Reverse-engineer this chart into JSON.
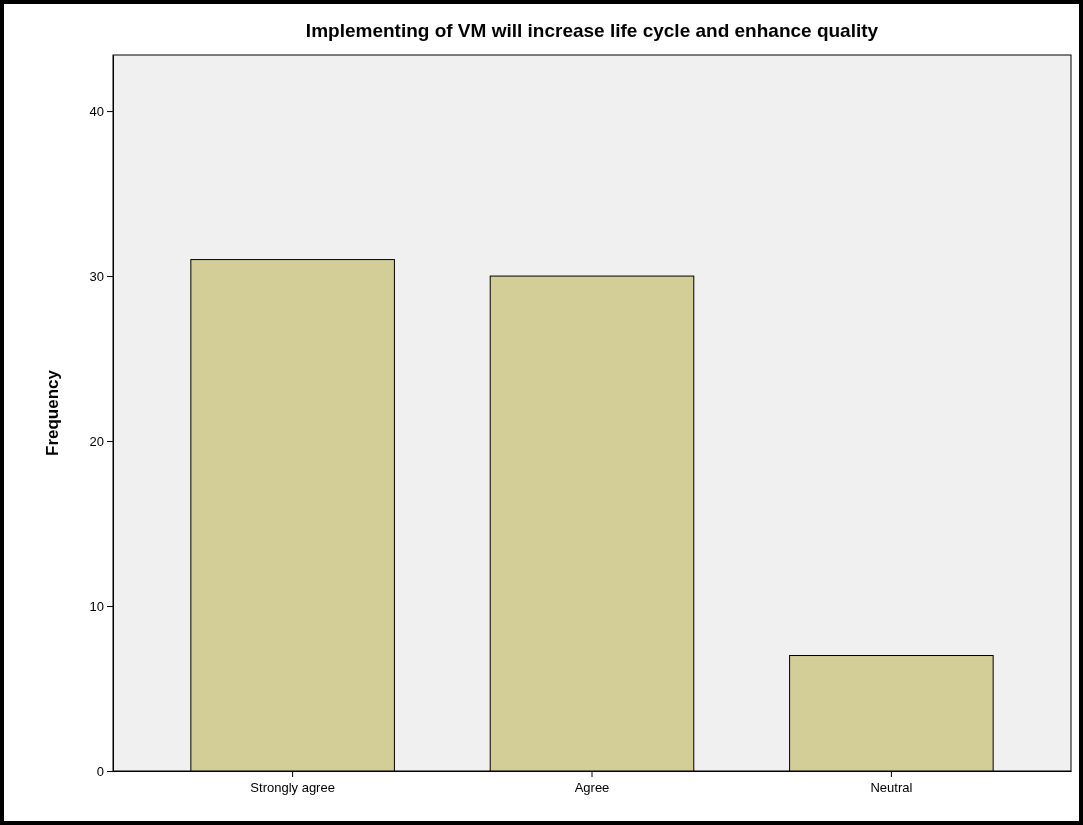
{
  "chart_data": {
    "type": "bar",
    "title": "Implementing of VM will increase life cycle and enhance quality",
    "ylabel": "Frequency",
    "categories": [
      "Strongly agree",
      "Agree",
      "Neutral"
    ],
    "values": [
      31,
      30,
      7
    ],
    "color": "#d3ce97",
    "ylim": [
      0,
      43.4
    ],
    "yticks": [
      0,
      10,
      20,
      30,
      40
    ],
    "grid": false,
    "legend": false
  }
}
